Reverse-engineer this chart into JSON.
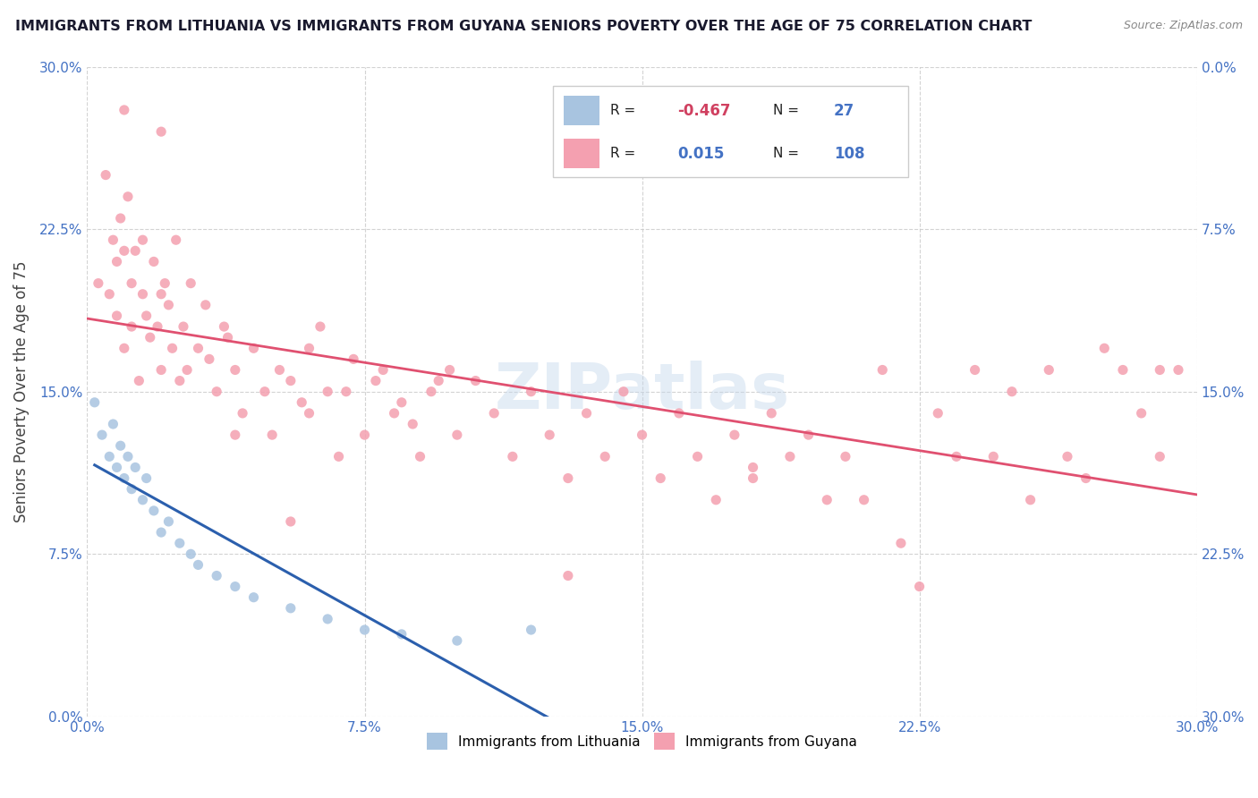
{
  "title": "IMMIGRANTS FROM LITHUANIA VS IMMIGRANTS FROM GUYANA SENIORS POVERTY OVER THE AGE OF 75 CORRELATION CHART",
  "source": "Source: ZipAtlas.com",
  "ylabel": "Seniors Poverty Over the Age of 75",
  "xlim": [
    0,
    0.3
  ],
  "ylim": [
    0,
    0.3
  ],
  "xticks": [
    0.0,
    0.075,
    0.15,
    0.225,
    0.3
  ],
  "yticks": [
    0.0,
    0.075,
    0.15,
    0.225,
    0.3
  ],
  "xtick_labels": [
    "0.0%",
    "7.5%",
    "15.0%",
    "22.5%",
    "30.0%"
  ],
  "ytick_labels": [
    "0.0%",
    "7.5%",
    "15.0%",
    "22.5%",
    "30.0%"
  ],
  "right_ytick_labels": [
    "30.0%",
    "22.5%",
    "15.0%",
    "7.5%",
    "0.0%"
  ],
  "lithuania_color": "#a8c4e0",
  "guyana_color": "#f4a0b0",
  "lithuania_line_color": "#2b5fad",
  "guyana_line_color": "#e05070",
  "R_lithuania": -0.467,
  "N_lithuania": 27,
  "R_guyana": 0.015,
  "N_guyana": 108,
  "watermark": "ZIPatlas",
  "legend_label_1": "Immigrants from Lithuania",
  "legend_label_2": "Immigrants from Guyana",
  "lithuania_x": [
    0.002,
    0.004,
    0.006,
    0.007,
    0.008,
    0.009,
    0.01,
    0.011,
    0.012,
    0.013,
    0.015,
    0.016,
    0.018,
    0.02,
    0.022,
    0.025,
    0.028,
    0.03,
    0.035,
    0.04,
    0.045,
    0.055,
    0.065,
    0.075,
    0.085,
    0.1,
    0.12
  ],
  "lithuania_y": [
    0.145,
    0.13,
    0.12,
    0.135,
    0.115,
    0.125,
    0.11,
    0.12,
    0.105,
    0.115,
    0.1,
    0.11,
    0.095,
    0.085,
    0.09,
    0.08,
    0.075,
    0.07,
    0.065,
    0.06,
    0.055,
    0.05,
    0.045,
    0.04,
    0.038,
    0.035,
    0.04
  ],
  "guyana_x": [
    0.003,
    0.005,
    0.006,
    0.007,
    0.008,
    0.008,
    0.009,
    0.01,
    0.01,
    0.011,
    0.012,
    0.012,
    0.013,
    0.014,
    0.015,
    0.015,
    0.016,
    0.017,
    0.018,
    0.019,
    0.02,
    0.02,
    0.021,
    0.022,
    0.023,
    0.024,
    0.025,
    0.026,
    0.027,
    0.028,
    0.03,
    0.032,
    0.033,
    0.035,
    0.037,
    0.038,
    0.04,
    0.042,
    0.045,
    0.048,
    0.05,
    0.052,
    0.055,
    0.058,
    0.06,
    0.063,
    0.065,
    0.068,
    0.07,
    0.072,
    0.075,
    0.078,
    0.08,
    0.083,
    0.085,
    0.088,
    0.09,
    0.093,
    0.095,
    0.098,
    0.1,
    0.105,
    0.11,
    0.115,
    0.12,
    0.125,
    0.13,
    0.135,
    0.14,
    0.145,
    0.15,
    0.155,
    0.16,
    0.165,
    0.17,
    0.175,
    0.18,
    0.185,
    0.19,
    0.195,
    0.2,
    0.205,
    0.21,
    0.215,
    0.22,
    0.225,
    0.23,
    0.235,
    0.24,
    0.245,
    0.25,
    0.255,
    0.26,
    0.265,
    0.27,
    0.275,
    0.28,
    0.285,
    0.29,
    0.295,
    0.055,
    0.13,
    0.06,
    0.29,
    0.18,
    0.04,
    0.02,
    0.01
  ],
  "guyana_y": [
    0.2,
    0.25,
    0.195,
    0.22,
    0.185,
    0.21,
    0.23,
    0.17,
    0.215,
    0.24,
    0.18,
    0.2,
    0.215,
    0.155,
    0.22,
    0.195,
    0.185,
    0.175,
    0.21,
    0.18,
    0.16,
    0.195,
    0.2,
    0.19,
    0.17,
    0.22,
    0.155,
    0.18,
    0.16,
    0.2,
    0.17,
    0.19,
    0.165,
    0.15,
    0.18,
    0.175,
    0.16,
    0.14,
    0.17,
    0.15,
    0.13,
    0.16,
    0.155,
    0.145,
    0.14,
    0.18,
    0.15,
    0.12,
    0.15,
    0.165,
    0.13,
    0.155,
    0.16,
    0.14,
    0.145,
    0.135,
    0.12,
    0.15,
    0.155,
    0.16,
    0.13,
    0.155,
    0.14,
    0.12,
    0.15,
    0.13,
    0.11,
    0.14,
    0.12,
    0.15,
    0.13,
    0.11,
    0.14,
    0.12,
    0.1,
    0.13,
    0.11,
    0.14,
    0.12,
    0.13,
    0.1,
    0.12,
    0.1,
    0.16,
    0.08,
    0.06,
    0.14,
    0.12,
    0.16,
    0.12,
    0.15,
    0.1,
    0.16,
    0.12,
    0.11,
    0.17,
    0.16,
    0.14,
    0.12,
    0.16,
    0.09,
    0.065,
    0.17,
    0.16,
    0.115,
    0.13,
    0.27,
    0.28
  ]
}
